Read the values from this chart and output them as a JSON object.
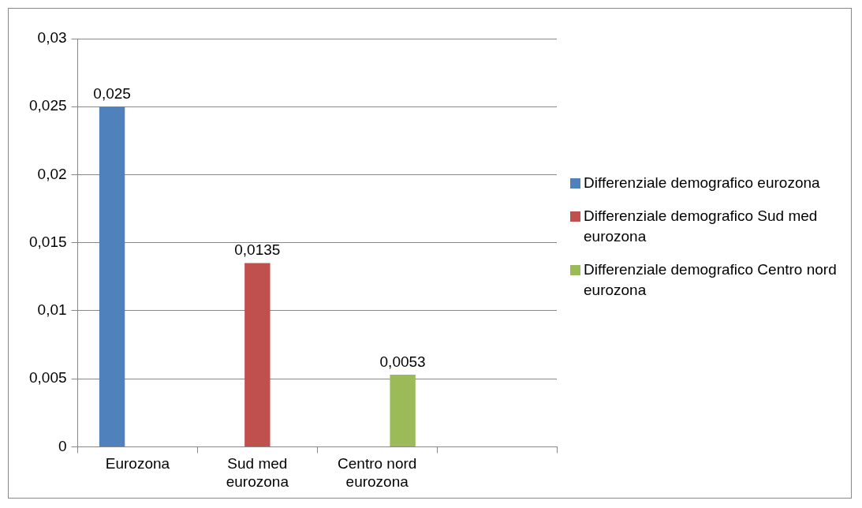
{
  "chart_data": {
    "type": "bar",
    "categories": [
      "Eurozona",
      "Sud med eurozona",
      "Centro nord eurozona",
      null
    ],
    "series": [
      {
        "name": "Differenziale demografico eurozona",
        "color": "#4f81bd",
        "values": [
          0.025,
          null,
          null,
          null
        ],
        "value_labels": [
          "0,025",
          null,
          null,
          null
        ]
      },
      {
        "name": "Differenziale demografico Sud med eurozona",
        "color": "#c0504d",
        "values": [
          null,
          0.0135,
          null,
          null
        ],
        "value_labels": [
          null,
          "0,0135",
          null,
          null
        ]
      },
      {
        "name": "Differenziale demografico Centro nord eurozona",
        "color": "#9bbb59",
        "values": [
          null,
          null,
          0.0053,
          null
        ],
        "value_labels": [
          null,
          null,
          "0,0053",
          null
        ]
      }
    ],
    "ylim": [
      0,
      0.03
    ],
    "yticks": [
      {
        "value": 0,
        "label": "0"
      },
      {
        "value": 0.005,
        "label": "0,005"
      },
      {
        "value": 0.01,
        "label": "0,01"
      },
      {
        "value": 0.015,
        "label": "0,015"
      },
      {
        "value": 0.02,
        "label": "0,02"
      },
      {
        "value": 0.025,
        "label": "0,025"
      },
      {
        "value": 0.03,
        "label": "0,03"
      }
    ],
    "grid": "y",
    "legend": "right"
  }
}
